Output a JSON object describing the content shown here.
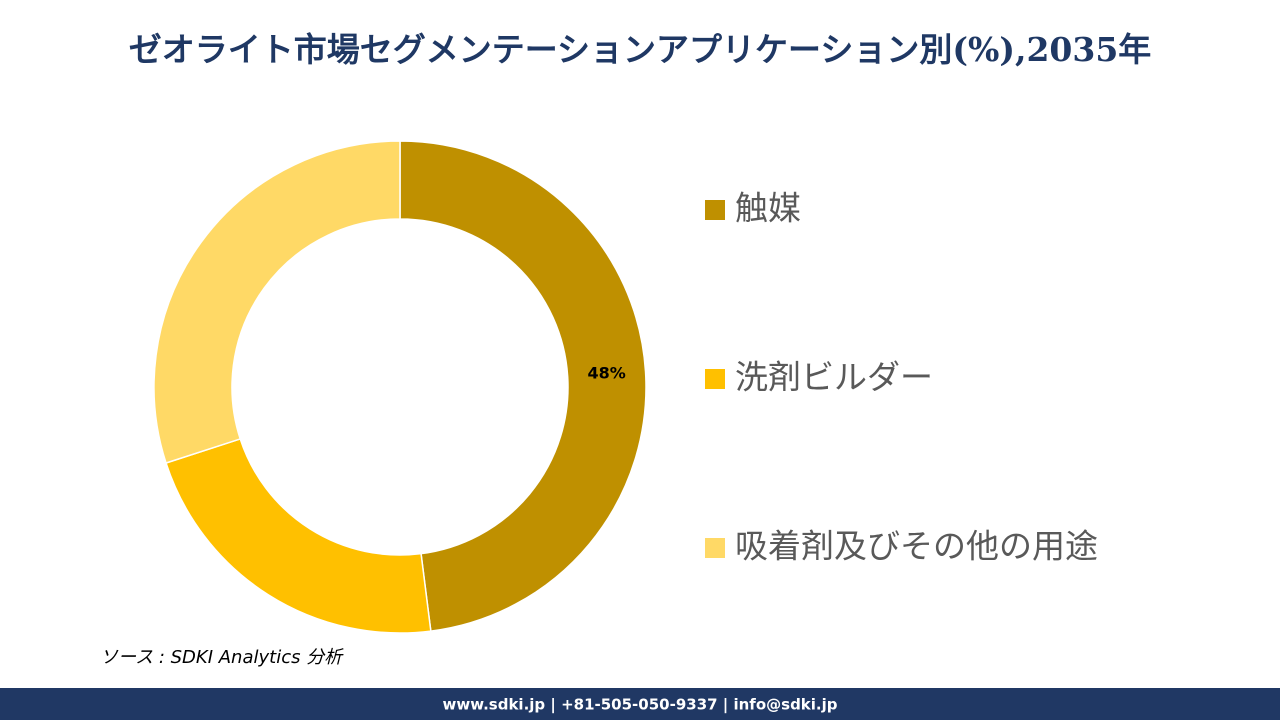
{
  "chart_data": {
    "type": "donut",
    "title": "ゼオライト市場セグメンテーションアプリケーション別(%),2035年",
    "categories": [
      "触媒",
      "洗剤ビルダー",
      "吸着剤及びその他の用途"
    ],
    "values": [
      48,
      22,
      30
    ],
    "value_labels": [
      "48%",
      null,
      null
    ],
    "colors": [
      "#bf9000",
      "#ffc000",
      "#ffd966"
    ],
    "legend": "right"
  },
  "source": "ソース : SDKI Analytics 分析",
  "footer": "www.sdki.jp | +81-505-050-9337 | info@sdki.jp"
}
